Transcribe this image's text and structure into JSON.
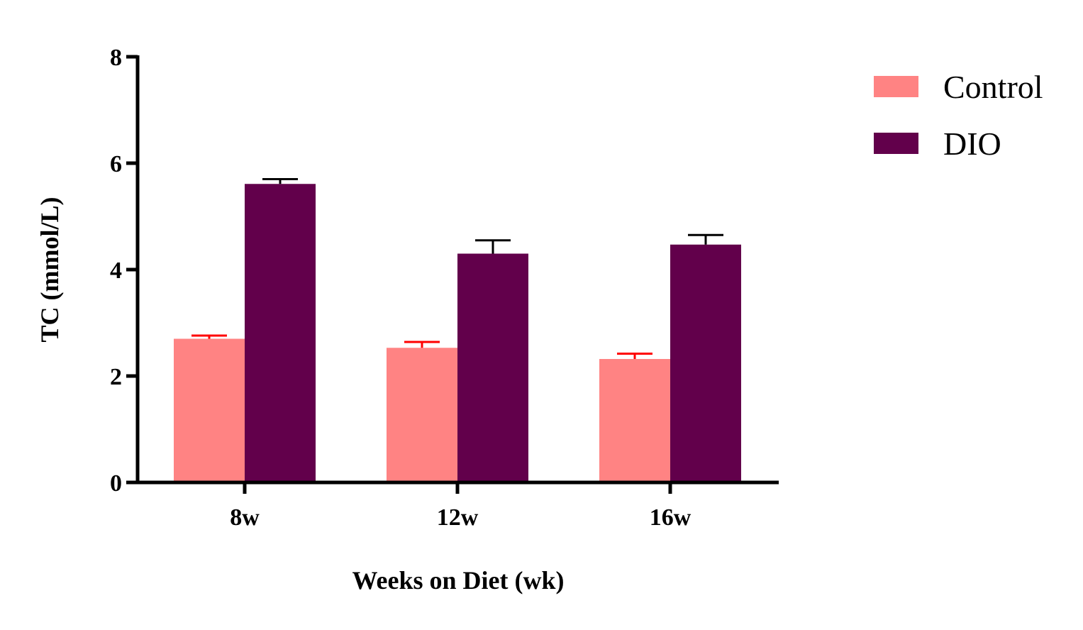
{
  "chart_data": {
    "type": "bar",
    "title": "",
    "xlabel": "Weeks on Diet (wk)",
    "ylabel": "TC (mmol/L)",
    "categories": [
      "8w",
      "12w",
      "16w"
    ],
    "ylim": [
      0,
      8
    ],
    "yticks": [
      0,
      2,
      4,
      6,
      8
    ],
    "ytick_labels": [
      "0",
      "2",
      "4",
      "6",
      "8"
    ],
    "grid": false,
    "legend_position": "top-right",
    "series": [
      {
        "name": "Control",
        "color": "#ff8383",
        "error_color": "#ff0000",
        "values": [
          2.7,
          2.53,
          2.32
        ],
        "errors": [
          0.06,
          0.11,
          0.1
        ]
      },
      {
        "name": "DIO",
        "color": "#62004b",
        "error_color": "#000000",
        "values": [
          5.61,
          4.3,
          4.47
        ],
        "errors": [
          0.09,
          0.25,
          0.18
        ]
      }
    ]
  }
}
